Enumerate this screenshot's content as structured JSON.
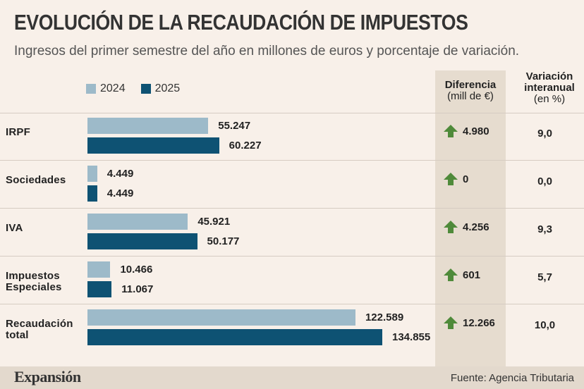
{
  "title": "EVOLUCIÓN DE LA RECAUDACIÓN DE IMPUESTOS",
  "subtitle": "Ingresos del primer semestre del año en millones de euros y porcentaje de variación.",
  "legend": [
    {
      "label": "2024",
      "color": "#9dbac9"
    },
    {
      "label": "2025",
      "color": "#0e5273"
    }
  ],
  "columns": {
    "diff_title": "Diferencia",
    "diff_unit": "(mill de €)",
    "var_title_1": "Variación",
    "var_title_2": "interanual",
    "var_unit": "(en %)"
  },
  "colors": {
    "bar_2024": "#9dbac9",
    "bar_2025": "#0e5273",
    "arrow": "#4f8a3a",
    "band": "#e6dccf"
  },
  "chart_data": {
    "type": "bar",
    "orientation": "horizontal",
    "categories": [
      "IRPF",
      "Sociedades",
      "IVA",
      "Impuestos Especiales",
      "Recaudación total"
    ],
    "series": [
      {
        "name": "2024",
        "values": [
          55247,
          4449,
          45921,
          10466,
          122589
        ],
        "labels": [
          "55.247",
          "4.449",
          "45.921",
          "10.466",
          "122.589"
        ]
      },
      {
        "name": "2025",
        "values": [
          60227,
          4449,
          50177,
          11067,
          134855
        ],
        "labels": [
          "60.227",
          "4.449",
          "50.177",
          "11.067",
          "134.855"
        ]
      }
    ],
    "diferencia": [
      "4.980",
      "0",
      "4.256",
      "601",
      "12.266"
    ],
    "variacion": [
      "9,0",
      "0,0",
      "9,3",
      "5,7",
      "10,0"
    ]
  },
  "rows_display": [
    [
      "IRPF"
    ],
    [
      "Sociedades"
    ],
    [
      "IVA"
    ],
    [
      "Impuestos",
      "Especiales"
    ],
    [
      "Recaudación",
      "total"
    ]
  ],
  "footer": {
    "brand": "Expansión",
    "source": "Fuente: Agencia Tributaria"
  }
}
